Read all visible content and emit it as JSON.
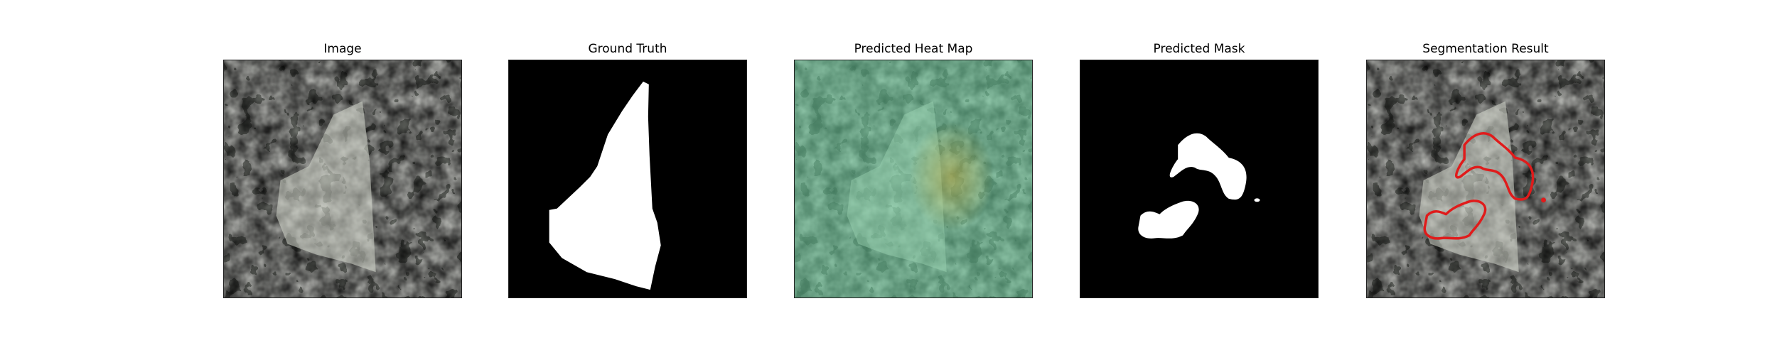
{
  "panels": [
    {
      "id": "image",
      "title": "Image"
    },
    {
      "id": "ground-truth",
      "title": "Ground Truth"
    },
    {
      "id": "heat-map",
      "title": "Predicted Heat Map"
    },
    {
      "id": "mask",
      "title": "Predicted Mask"
    },
    {
      "id": "result",
      "title": "Segmentation Result"
    }
  ],
  "colors": {
    "texture_base": "#8f918a",
    "texture_spots": "#2f302d",
    "object_fill": "#cfd3c6",
    "heat_overlay": "#6fcf9a",
    "mask_fill": "#ffffff",
    "background_black": "#000000",
    "contour": "#e01b1b"
  }
}
